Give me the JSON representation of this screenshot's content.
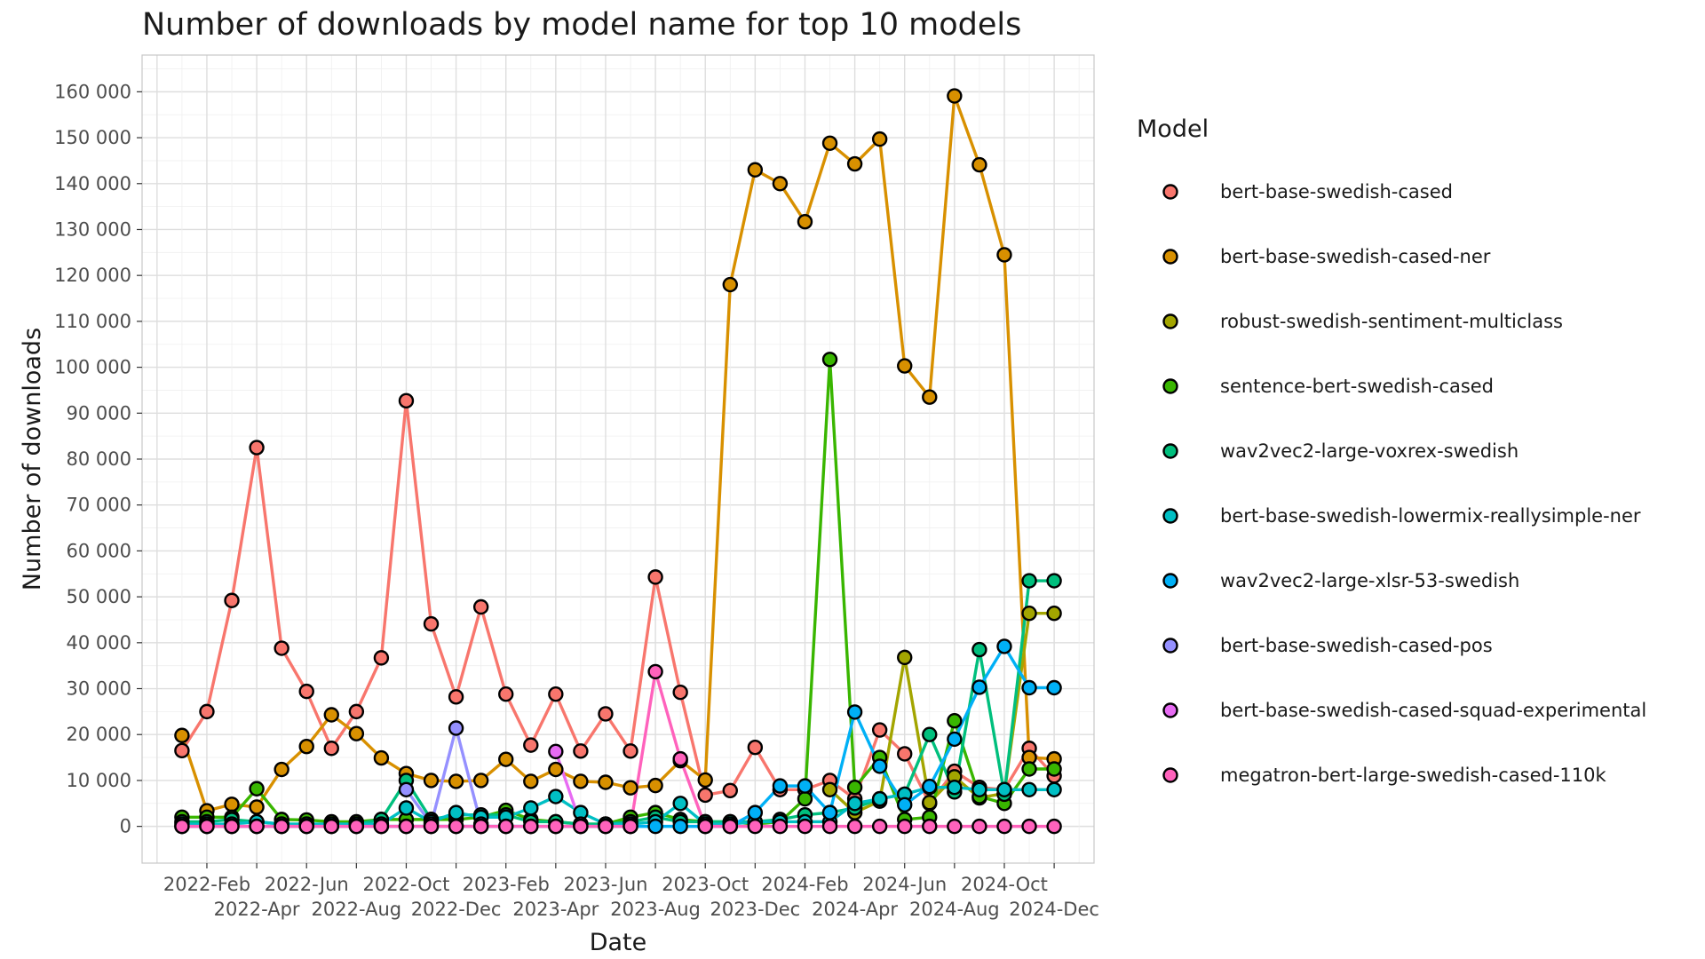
{
  "chart_data": {
    "type": "line",
    "title": "Number of downloads by model name for top 10 models",
    "xlabel": "Date",
    "ylabel": "Number of downloads",
    "legend_title": "Model",
    "legend_position": "right",
    "grid": true,
    "ylim": [
      -8000,
      168000
    ],
    "y_ticks": [
      0,
      10000,
      20000,
      30000,
      40000,
      50000,
      60000,
      70000,
      80000,
      90000,
      100000,
      110000,
      120000,
      130000,
      140000,
      150000,
      160000
    ],
    "y_tick_labels": [
      "0",
      "10 000",
      "20 000",
      "30 000",
      "40 000",
      "50 000",
      "60 000",
      "70 000",
      "80 000",
      "90 000",
      "100 000",
      "110 000",
      "120 000",
      "130 000",
      "140 000",
      "150 000",
      "160 000"
    ],
    "x_ticks": [
      "2022-02",
      "2022-04",
      "2022-06",
      "2022-08",
      "2022-10",
      "2022-12",
      "2023-02",
      "2023-04",
      "2023-06",
      "2023-08",
      "2023-10",
      "2023-12",
      "2024-02",
      "2024-04",
      "2024-06",
      "2024-08",
      "2024-10",
      "2024-12"
    ],
    "x_tick_labels": [
      "2022-Feb",
      "2022-Apr",
      "2022-Jun",
      "2022-Aug",
      "2022-Oct",
      "2022-Dec",
      "2023-Feb",
      "2023-Apr",
      "2023-Jun",
      "2023-Aug",
      "2023-Oct",
      "2023-Dec",
      "2024-Feb",
      "2024-Apr",
      "2024-Jun",
      "2024-Aug",
      "2024-Oct",
      "2024-Dec"
    ],
    "x": [
      "2022-01",
      "2022-02",
      "2022-03",
      "2022-04",
      "2022-05",
      "2022-06",
      "2022-07",
      "2022-08",
      "2022-09",
      "2022-10",
      "2022-11",
      "2022-12",
      "2023-01",
      "2023-02",
      "2023-03",
      "2023-04",
      "2023-05",
      "2023-06",
      "2023-07",
      "2023-08",
      "2023-09",
      "2023-10",
      "2023-11",
      "2023-12",
      "2024-01",
      "2024-02",
      "2024-03",
      "2024-04",
      "2024-05",
      "2024-06",
      "2024-07",
      "2024-08",
      "2024-09",
      "2024-10",
      "2024-11",
      "2024-12"
    ],
    "series": [
      {
        "name": "bert-base-swedish-cased",
        "color": "#F8766D",
        "values": [
          16500,
          25000,
          49200,
          82500,
          38800,
          29400,
          17000,
          25000,
          36700,
          92700,
          44100,
          28200,
          47800,
          28800,
          17700,
          28800,
          16400,
          24500,
          16400,
          54300,
          29200,
          6800,
          7800,
          17200,
          8000,
          8000,
          10000,
          6000,
          21000,
          15800,
          5000,
          12000,
          8500,
          8000,
          17000,
          11000
        ]
      },
      {
        "name": "bert-base-swedish-cased-ner",
        "color": "#D89000",
        "values": [
          19800,
          3400,
          4800,
          4200,
          12400,
          17400,
          24300,
          20200,
          14900,
          11500,
          10000,
          9800,
          10000,
          14600,
          9800,
          12400,
          9800,
          9600,
          8400,
          8900,
          14300,
          10100,
          118000,
          143000,
          140000,
          131700,
          148800,
          144300,
          149700,
          100300,
          93500,
          159100,
          144100,
          124500,
          15000,
          14700
        ]
      },
      {
        "name": "robust-swedish-sentiment-multiclass",
        "color": "#A3A500",
        "values": [
          null,
          null,
          null,
          null,
          null,
          null,
          null,
          null,
          null,
          null,
          null,
          null,
          null,
          null,
          null,
          null,
          null,
          null,
          null,
          null,
          null,
          null,
          null,
          null,
          null,
          null,
          8000,
          3000,
          5500,
          36800,
          5200,
          10800,
          6200,
          7200,
          46400,
          46400
        ]
      },
      {
        "name": "sentence-bert-swedish-cased",
        "color": "#39B600",
        "values": [
          2000,
          2000,
          2000,
          8200,
          1500,
          1400,
          1000,
          1000,
          1500,
          1500,
          1500,
          1500,
          2000,
          3500,
          1500,
          1000,
          500,
          500,
          2000,
          3000,
          1500,
          1000,
          1000,
          500,
          1000,
          6000,
          101700,
          8500,
          15000,
          1500,
          2000,
          23000,
          6500,
          5000,
          12500,
          12500
        ]
      },
      {
        "name": "wav2vec2-large-voxrex-swedish",
        "color": "#00BF7D",
        "values": [
          1000,
          1000,
          1500,
          1000,
          500,
          500,
          500,
          500,
          1500,
          10000,
          1500,
          2500,
          2500,
          2500,
          1000,
          1000,
          500,
          500,
          1000,
          2000,
          1000,
          1000,
          1000,
          1000,
          1500,
          2500,
          3000,
          4000,
          6000,
          7000,
          20000,
          7500,
          38500,
          7000,
          53500,
          53500
        ]
      },
      {
        "name": "bert-base-swedish-lowermix-reallysimple-ner",
        "color": "#00BFC4",
        "values": [
          500,
          500,
          500,
          1000,
          500,
          500,
          500,
          500,
          500,
          4000,
          1000,
          3000,
          2000,
          2000,
          4000,
          6500,
          3000,
          500,
          500,
          1000,
          5000,
          500,
          500,
          1000,
          1000,
          1000,
          1000,
          5000,
          6000,
          7000,
          8500,
          8500,
          8000,
          8000,
          8000,
          8000
        ]
      },
      {
        "name": "wav2vec2-large-xlsr-53-swedish",
        "color": "#00B0F6",
        "values": [
          0,
          0,
          0,
          0,
          0,
          0,
          0,
          0,
          0,
          0,
          0,
          0,
          0,
          0,
          0,
          0,
          0,
          0,
          0,
          0,
          0,
          0,
          0,
          3000,
          8800,
          8800,
          3000,
          24900,
          13100,
          4700,
          8700,
          19000,
          30300,
          39200,
          30200,
          30200
        ]
      },
      {
        "name": "bert-base-swedish-cased-pos",
        "color": "#9590FF",
        "values": [
          null,
          null,
          null,
          null,
          null,
          null,
          null,
          null,
          null,
          8000,
          500,
          21400,
          500,
          null,
          null,
          null,
          null,
          null,
          null,
          null,
          null,
          null,
          null,
          null,
          null,
          null,
          null,
          null,
          null,
          null,
          null,
          null,
          null,
          null,
          null,
          null
        ]
      },
      {
        "name": "bert-base-swedish-cased-squad-experimental",
        "color": "#E76BF3",
        "values": [
          null,
          null,
          null,
          null,
          null,
          null,
          null,
          null,
          null,
          null,
          null,
          null,
          null,
          null,
          null,
          16300,
          500,
          null,
          null,
          null,
          null,
          null,
          null,
          null,
          null,
          null,
          null,
          null,
          null,
          null,
          null,
          null,
          null,
          null,
          null,
          null
        ]
      },
      {
        "name": "megatron-bert-large-swedish-cased-110k",
        "color": "#FF62BC",
        "values": [
          0,
          0,
          0,
          0,
          0,
          0,
          0,
          0,
          0,
          0,
          0,
          0,
          0,
          0,
          0,
          0,
          0,
          0,
          0,
          33700,
          14700,
          0,
          0,
          0,
          0,
          0,
          0,
          0,
          0,
          0,
          0,
          0,
          0,
          0,
          0,
          0
        ]
      }
    ]
  }
}
